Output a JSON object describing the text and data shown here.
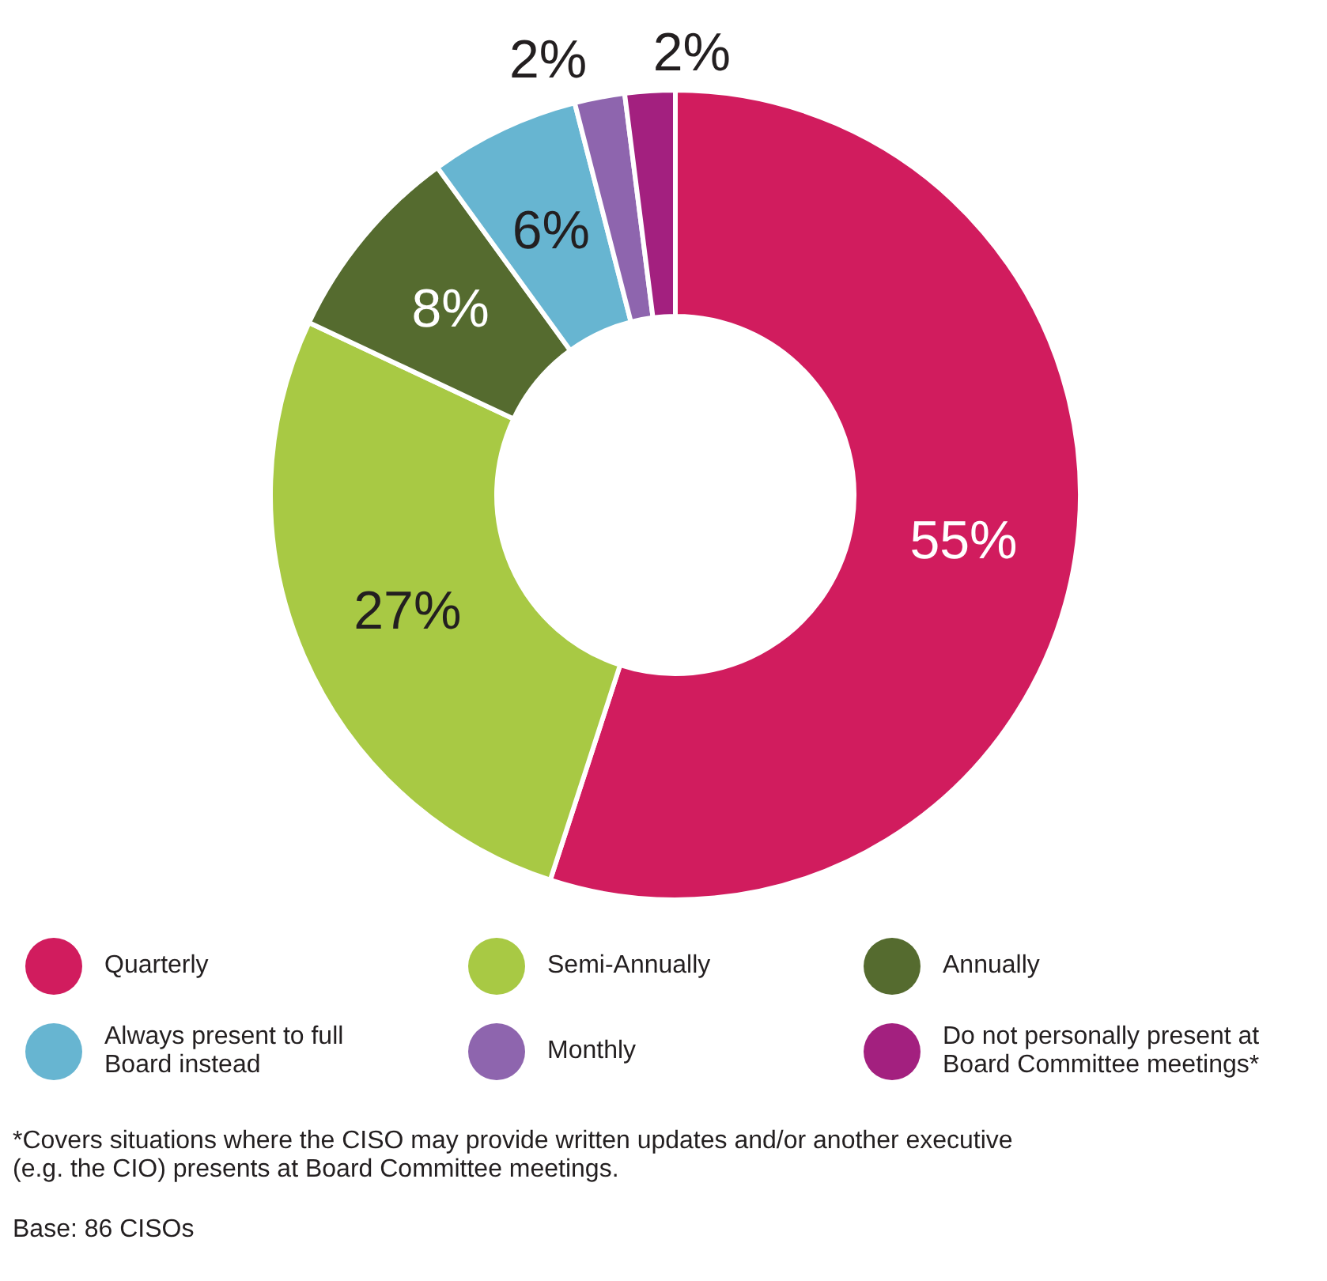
{
  "chart_data": {
    "type": "donut",
    "categories": [
      "Quarterly",
      "Semi-Annually",
      "Annually",
      "Always present to full Board instead",
      "Monthly",
      "Do not personally present at Board Committee meetings*"
    ],
    "values": [
      55,
      27,
      8,
      6,
      2,
      2
    ],
    "value_labels": [
      "55%",
      "27%",
      "8%",
      "6%",
      "2%",
      "2%"
    ],
    "colors": [
      "#d11c5e",
      "#a8c944",
      "#556b2f",
      "#67b5d1",
      "#8e65ae",
      "#a3207f"
    ],
    "legend": "bottom",
    "annotations": [
      "*Covers situations where the CISO may provide written updates and/or another executive (e.g. the CIO) presents at Board Committee meetings.",
      "Base: 86 CISOs"
    ]
  }
}
